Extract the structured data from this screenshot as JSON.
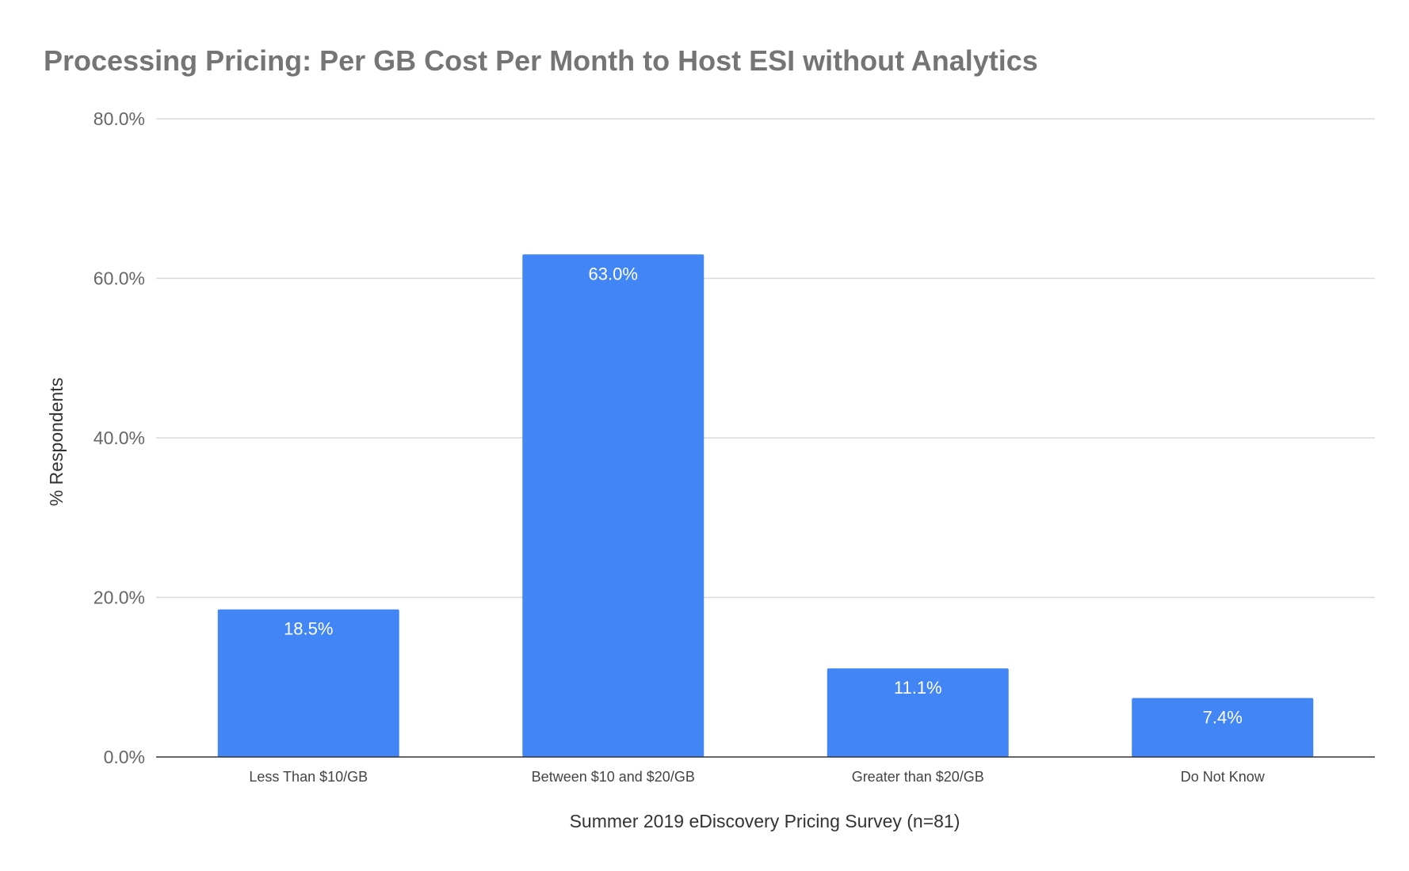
{
  "chart_data": {
    "type": "bar",
    "title": "Processing Pricing: Per GB Cost Per Month to Host ESI without Analytics",
    "xlabel": "Summer 2019 eDiscovery Pricing Survey (n=81)",
    "ylabel": "% Respondents",
    "categories": [
      "Less Than $10/GB",
      "Between $10 and $20/GB",
      "Greater than $20/GB",
      "Do Not Know"
    ],
    "values": [
      18.5,
      63.0,
      11.1,
      7.4
    ],
    "data_labels": [
      "18.5%",
      "63.0%",
      "11.1%",
      "7.4%"
    ],
    "ylim": [
      0,
      80
    ],
    "yticks": [
      0,
      20,
      40,
      60,
      80
    ],
    "ytick_labels": [
      "0.0%",
      "20.0%",
      "40.0%",
      "60.0%",
      "80.0%"
    ],
    "grid": true,
    "legend": "none",
    "bar_color": "#4285f4"
  }
}
